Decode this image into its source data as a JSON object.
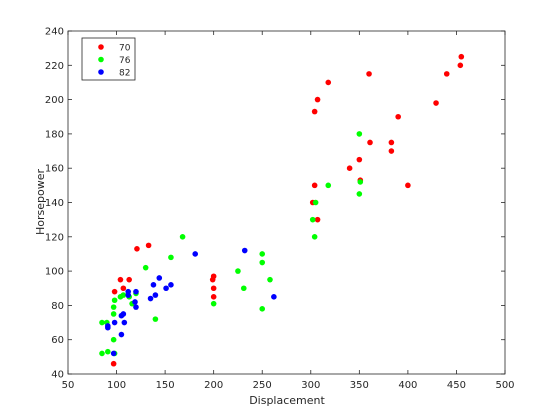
{
  "chart_data": {
    "type": "scatter",
    "title": "",
    "xlabel": "Displacement",
    "ylabel": "Horsepower",
    "xlim": [
      50,
      500
    ],
    "ylim": [
      40,
      240
    ],
    "xticks": [
      50,
      100,
      150,
      200,
      250,
      300,
      350,
      400,
      450,
      500
    ],
    "yticks": [
      40,
      60,
      80,
      100,
      120,
      140,
      160,
      180,
      200,
      220,
      240
    ],
    "grid": false,
    "legend": {
      "position": "top-left"
    },
    "series": [
      {
        "name": "70",
        "color": "#ff0000",
        "points": [
          [
            97,
            46
          ],
          [
            98,
            88
          ],
          [
            104,
            95
          ],
          [
            107,
            90
          ],
          [
            113,
            95
          ],
          [
            121,
            113
          ],
          [
            133,
            115
          ],
          [
            199,
            95
          ],
          [
            200,
            97
          ],
          [
            200,
            90
          ],
          [
            200,
            85
          ],
          [
            302,
            140
          ],
          [
            304,
            193
          ],
          [
            304,
            150
          ],
          [
            307,
            200
          ],
          [
            307,
            130
          ],
          [
            318,
            210
          ],
          [
            340,
            160
          ],
          [
            350,
            165
          ],
          [
            351,
            153
          ],
          [
            360,
            215
          ],
          [
            361,
            175
          ],
          [
            383,
            175
          ],
          [
            383,
            170
          ],
          [
            390,
            190
          ],
          [
            400,
            150
          ],
          [
            429,
            198
          ],
          [
            440,
            215
          ],
          [
            454,
            220
          ],
          [
            455,
            225
          ]
        ]
      },
      {
        "name": "76",
        "color": "#00ff00",
        "points": [
          [
            85,
            52
          ],
          [
            85,
            70
          ],
          [
            90,
            70
          ],
          [
            91,
            53
          ],
          [
            97,
            75
          ],
          [
            97,
            79
          ],
          [
            97,
            60
          ],
          [
            98,
            83
          ],
          [
            98,
            52
          ],
          [
            104,
            85
          ],
          [
            107,
            86
          ],
          [
            113,
            85
          ],
          [
            116,
            81
          ],
          [
            120,
            87
          ],
          [
            130,
            102
          ],
          [
            140,
            72
          ],
          [
            156,
            108
          ],
          [
            168,
            120
          ],
          [
            200,
            81
          ],
          [
            225,
            100
          ],
          [
            231,
            90
          ],
          [
            250,
            105
          ],
          [
            250,
            110
          ],
          [
            250,
            78
          ],
          [
            258,
            95
          ],
          [
            302,
            130
          ],
          [
            304,
            120
          ],
          [
            305,
            140
          ],
          [
            318,
            150
          ],
          [
            350,
            180
          ],
          [
            350,
            145
          ],
          [
            351,
            152
          ]
        ]
      },
      {
        "name": "82",
        "color": "#0000ff",
        "points": [
          [
            91,
            68
          ],
          [
            91,
            67
          ],
          [
            97,
            52
          ],
          [
            98,
            70
          ],
          [
            105,
            63
          ],
          [
            105,
            74
          ],
          [
            107,
            75
          ],
          [
            108,
            70
          ],
          [
            112,
            88
          ],
          [
            112,
            86
          ],
          [
            119,
            82
          ],
          [
            120,
            88
          ],
          [
            120,
            79
          ],
          [
            135,
            84
          ],
          [
            138,
            92
          ],
          [
            140,
            86
          ],
          [
            144,
            96
          ],
          [
            151,
            90
          ],
          [
            156,
            92
          ],
          [
            181,
            110
          ],
          [
            232,
            112
          ],
          [
            262,
            85
          ]
        ]
      }
    ]
  }
}
